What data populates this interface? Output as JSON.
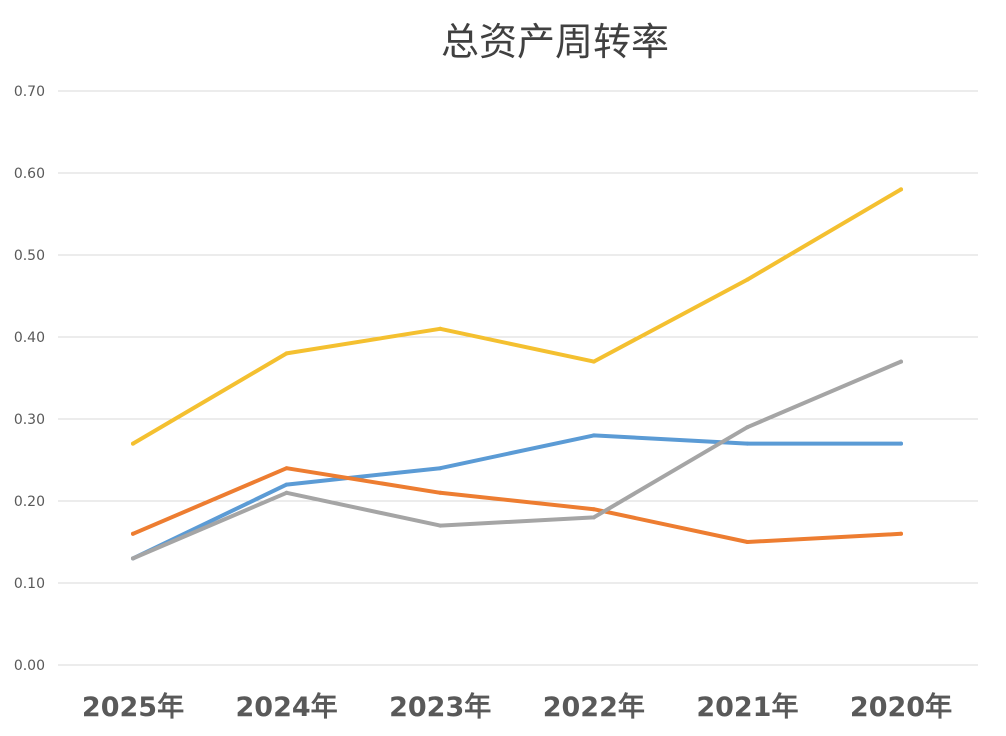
{
  "chart_data": {
    "type": "line",
    "title": "总资产周转率",
    "xlabel": "",
    "ylabel": "",
    "categories": [
      "2025年",
      "2024年",
      "2023年",
      "2022年",
      "2021年",
      "2020年"
    ],
    "ylim": [
      0,
      0.7
    ],
    "yticks": [
      "0.00",
      "0.10",
      "0.20",
      "0.30",
      "0.40",
      "0.50",
      "0.60",
      "0.70"
    ],
    "grid": true,
    "legend": "none",
    "series": [
      {
        "color": "#5B9BD5",
        "values": [
          0.13,
          0.22,
          0.24,
          0.28,
          0.27,
          0.27
        ]
      },
      {
        "color": "#ED7D31",
        "values": [
          0.16,
          0.24,
          0.21,
          0.19,
          0.15,
          0.16
        ]
      },
      {
        "color": "#A5A5A5",
        "values": [
          0.13,
          0.21,
          0.17,
          0.18,
          0.29,
          0.37
        ]
      },
      {
        "color": "#F4C030",
        "values": [
          0.27,
          0.38,
          0.41,
          0.37,
          0.47,
          0.58
        ]
      }
    ]
  }
}
